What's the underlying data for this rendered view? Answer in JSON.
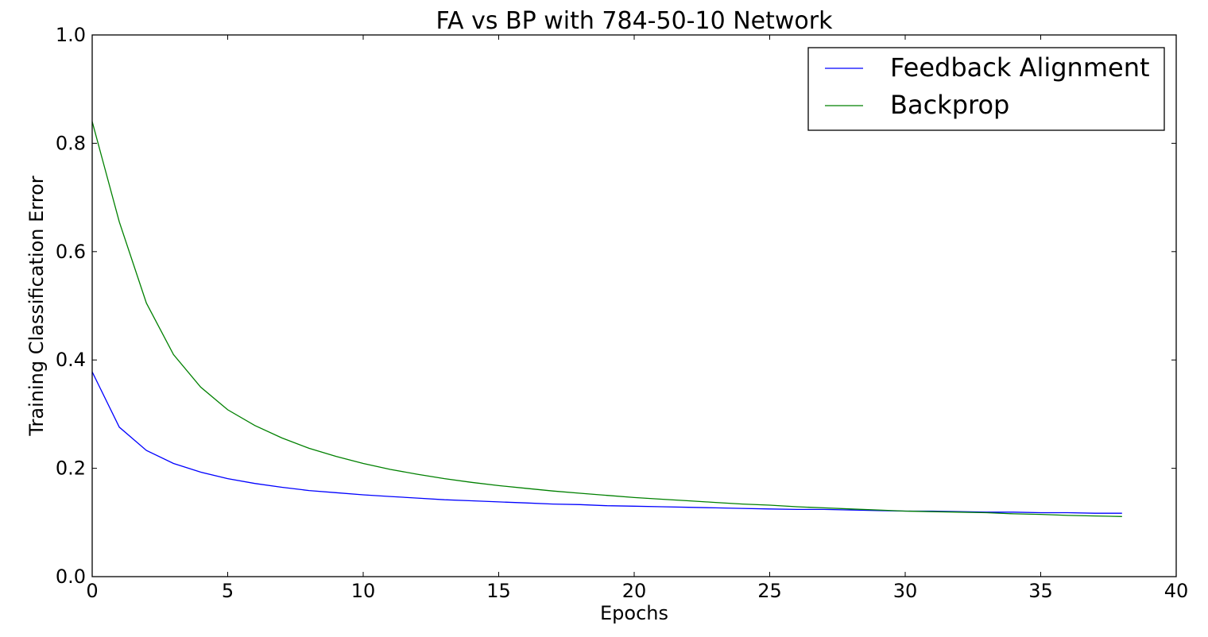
{
  "chart_data": {
    "type": "line",
    "title": "FA vs BP with 784-50-10 Network",
    "xlabel": "Epochs",
    "ylabel": "Training Classification Error",
    "xlim": [
      0,
      40
    ],
    "ylim": [
      0.0,
      1.0
    ],
    "xticks": [
      "0",
      "5",
      "10",
      "15",
      "20",
      "25",
      "30",
      "35",
      "40"
    ],
    "yticks": [
      "0.0",
      "0.2",
      "0.4",
      "0.6",
      "0.8",
      "1.0"
    ],
    "grid": false,
    "legend_position": "top-right",
    "x": [
      0,
      1,
      2,
      3,
      4,
      5,
      6,
      7,
      8,
      9,
      10,
      11,
      12,
      13,
      14,
      15,
      16,
      17,
      18,
      19,
      20,
      21,
      22,
      23,
      24,
      25,
      26,
      27,
      28,
      29,
      30,
      31,
      32,
      33,
      34,
      35,
      36,
      37,
      38
    ],
    "series": [
      {
        "name": "Feedback Alignment",
        "color": "#0000ff",
        "values": [
          0.378,
          0.276,
          0.233,
          0.209,
          0.193,
          0.181,
          0.172,
          0.165,
          0.159,
          0.155,
          0.151,
          0.148,
          0.145,
          0.142,
          0.14,
          0.138,
          0.136,
          0.134,
          0.133,
          0.131,
          0.13,
          0.129,
          0.128,
          0.127,
          0.126,
          0.125,
          0.124,
          0.124,
          0.123,
          0.122,
          0.121,
          0.121,
          0.12,
          0.119,
          0.119,
          0.118,
          0.118,
          0.117,
          0.117
        ]
      },
      {
        "name": "Backprop",
        "color": "#008000",
        "values": [
          0.84,
          0.655,
          0.505,
          0.41,
          0.35,
          0.308,
          0.279,
          0.256,
          0.237,
          0.222,
          0.209,
          0.198,
          0.189,
          0.181,
          0.174,
          0.168,
          0.163,
          0.158,
          0.154,
          0.15,
          0.146,
          0.143,
          0.14,
          0.137,
          0.134,
          0.132,
          0.129,
          0.127,
          0.125,
          0.123,
          0.121,
          0.12,
          0.119,
          0.118,
          0.116,
          0.115,
          0.113,
          0.112,
          0.111
        ]
      }
    ]
  }
}
